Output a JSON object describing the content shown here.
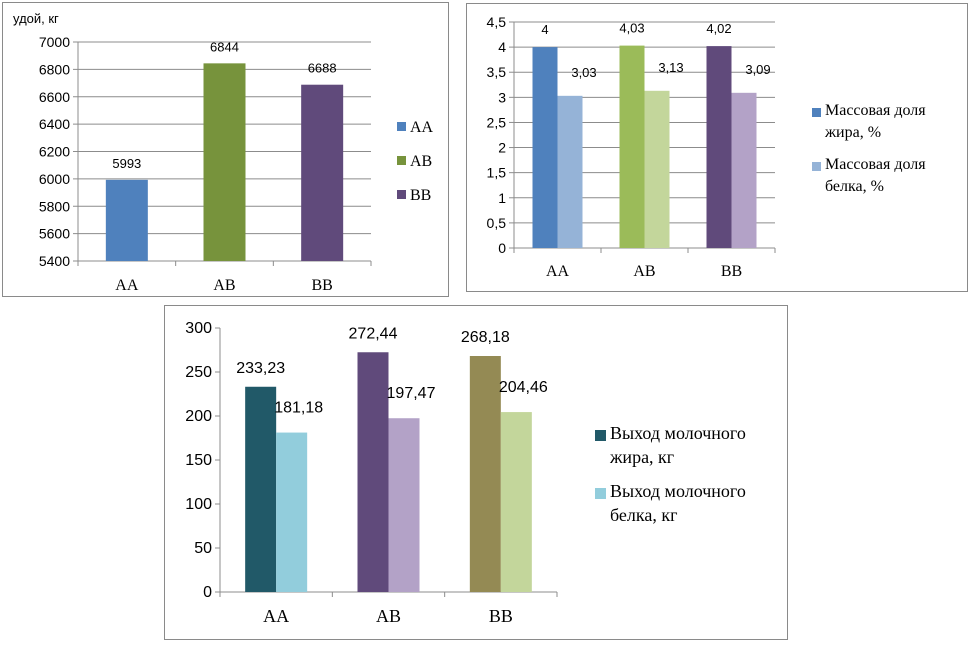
{
  "chart_data": [
    {
      "type": "bar",
      "ylabel": "удой, кг",
      "ylim": [
        5400,
        7000
      ],
      "yticks": [
        "5400",
        "5600",
        "5800",
        "6000",
        "6200",
        "6400",
        "6600",
        "6800",
        "7000"
      ],
      "categories": [
        "AA",
        "AB",
        "BB"
      ],
      "series": [
        {
          "name": "",
          "values": [
            5993,
            6844,
            6688
          ],
          "labels": [
            "5993",
            "6844",
            "6688"
          ]
        }
      ],
      "bar_colors": [
        "#4f81bd",
        "#77933c",
        "#604a7b"
      ],
      "legend": {
        "entries": [
          "AA",
          "AB",
          "BB"
        ],
        "colors": [
          "#4f81bd",
          "#77933c",
          "#604a7b"
        ],
        "position": "right"
      },
      "grid": true
    },
    {
      "type": "bar",
      "ylim": [
        0,
        4.5
      ],
      "yticks": [
        "0",
        "0,5",
        "1",
        "1,5",
        "2",
        "2,5",
        "3",
        "3,5",
        "4",
        "4,5"
      ],
      "categories": [
        "AA",
        "AB",
        "BB"
      ],
      "series": [
        {
          "name": "Массовая доля жира, %",
          "legend_lines": [
            "Массовая доля",
            "жира, %"
          ],
          "values": [
            4,
            4.03,
            4.02
          ],
          "labels": [
            "4",
            "4,03",
            "4,02"
          ],
          "colors": [
            "#4f81bd",
            "#9bbb59",
            "#604a7b"
          ],
          "legend_color": "#4f81bd"
        },
        {
          "name": "Массовая доля белка, %",
          "legend_lines": [
            "Массовая доля",
            "белка, %"
          ],
          "values": [
            3.03,
            3.13,
            3.09
          ],
          "labels": [
            "3,03",
            "3,13",
            "3,09"
          ],
          "colors": [
            "#95b3d7",
            "#c3d69b",
            "#b3a2c7"
          ],
          "legend_color": "#95b3d7"
        }
      ],
      "legend": {
        "position": "right"
      },
      "grid": true
    },
    {
      "type": "bar",
      "ylim": [
        0,
        300
      ],
      "yticks": [
        "0",
        "50",
        "100",
        "150",
        "200",
        "250",
        "300"
      ],
      "categories": [
        "AA",
        "AB",
        "BB"
      ],
      "series": [
        {
          "name": "Выход молочного жира, кг",
          "legend_lines": [
            "Выход  молочного",
            "жира, кг"
          ],
          "values": [
            233.23,
            272.44,
            268.18
          ],
          "labels": [
            "233,23",
            "272,44",
            "268,18"
          ],
          "colors": [
            "#215968",
            "#604a7b",
            "#948a54"
          ],
          "legend_color": "#215968"
        },
        {
          "name": "Выход молочного белка, кг",
          "legend_lines": [
            "Выход  молочного",
            "белка, кг"
          ],
          "values": [
            181.18,
            197.47,
            204.46
          ],
          "labels": [
            "181,18",
            "197,47",
            "204,46"
          ],
          "colors": [
            "#92cddc",
            "#b3a2c7",
            "#c3d69b"
          ],
          "legend_color": "#92cddc"
        }
      ],
      "legend": {
        "position": "right"
      },
      "grid": false
    }
  ]
}
